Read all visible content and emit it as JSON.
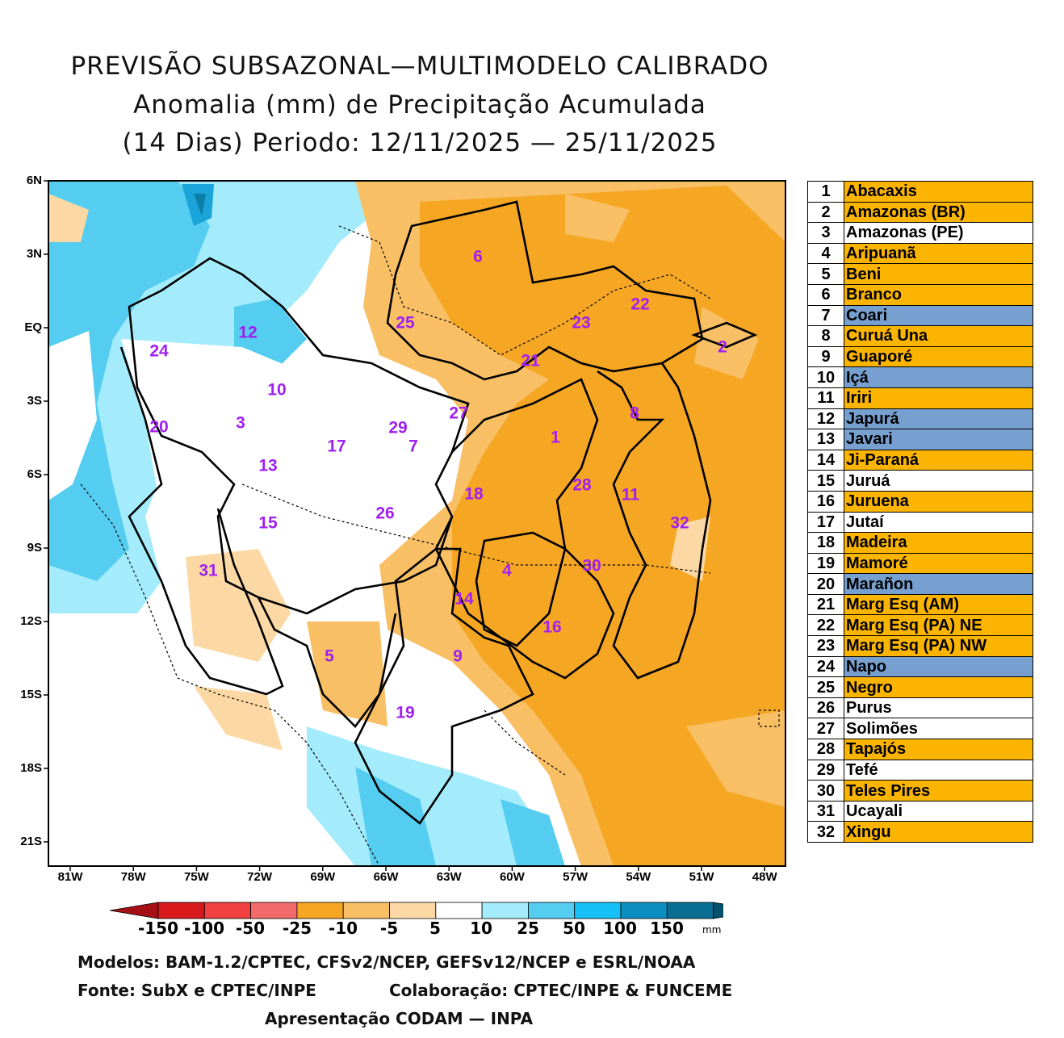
{
  "title": {
    "line1": "PREVISÃO SUBSAZONAL—MULTIMODELO CALIBRADO",
    "line2": "Anomalia (mm) de Precipitação Acumulada",
    "line3": "(14 Dias) Periodo: 12/11/2025 — 25/11/2025"
  },
  "axes": {
    "lat_ticks": [
      "6N",
      "3N",
      "EQ",
      "3S",
      "6S",
      "9S",
      "12S",
      "15S",
      "18S",
      "21S"
    ],
    "lon_ticks": [
      "81W",
      "78W",
      "75W",
      "72W",
      "69W",
      "66W",
      "63W",
      "60W",
      "57W",
      "54W",
      "51W",
      "48W"
    ]
  },
  "colors": {
    "orange_dark": "#f5a623",
    "orange_mid": "#f9bf64",
    "orange_light": "#fcd9a4",
    "white": "#ffffff",
    "cyan_light": "#a4ecfb",
    "cyan_mid": "#54cdf0",
    "cyan_dark": "#1aa4d9",
    "teal": "#0a7fa8",
    "table_orange": "#fbb400",
    "table_blue": "#779fcf",
    "table_white": "#ffffff"
  },
  "basins": [
    {
      "num": "1",
      "name": "Abacaxis",
      "cat": "orange"
    },
    {
      "num": "2",
      "name": "Amazonas (BR)",
      "cat": "orange"
    },
    {
      "num": "3",
      "name": "Amazonas (PE)",
      "cat": "white"
    },
    {
      "num": "4",
      "name": "Aripuanã",
      "cat": "orange"
    },
    {
      "num": "5",
      "name": "Beni",
      "cat": "orange"
    },
    {
      "num": "6",
      "name": "Branco",
      "cat": "orange"
    },
    {
      "num": "7",
      "name": "Coari",
      "cat": "blue"
    },
    {
      "num": "8",
      "name": "Curuá Una",
      "cat": "orange"
    },
    {
      "num": "9",
      "name": "Guaporé",
      "cat": "orange"
    },
    {
      "num": "10",
      "name": "Içá",
      "cat": "blue"
    },
    {
      "num": "11",
      "name": "Iriri",
      "cat": "orange"
    },
    {
      "num": "12",
      "name": "Japurá",
      "cat": "blue"
    },
    {
      "num": "13",
      "name": "Javari",
      "cat": "blue"
    },
    {
      "num": "14",
      "name": "Ji-Paraná",
      "cat": "orange"
    },
    {
      "num": "15",
      "name": "Juruá",
      "cat": "white"
    },
    {
      "num": "16",
      "name": "Juruena",
      "cat": "orange"
    },
    {
      "num": "17",
      "name": "Jutaí",
      "cat": "white"
    },
    {
      "num": "18",
      "name": "Madeira",
      "cat": "orange"
    },
    {
      "num": "19",
      "name": "Mamoré",
      "cat": "orange"
    },
    {
      "num": "20",
      "name": "Marañon",
      "cat": "blue"
    },
    {
      "num": "21",
      "name": "Marg Esq (AM)",
      "cat": "orange"
    },
    {
      "num": "22",
      "name": "Marg Esq (PA) NE",
      "cat": "orange"
    },
    {
      "num": "23",
      "name": "Marg Esq (PA) NW",
      "cat": "orange"
    },
    {
      "num": "24",
      "name": "Napo",
      "cat": "blue"
    },
    {
      "num": "25",
      "name": "Negro",
      "cat": "orange"
    },
    {
      "num": "26",
      "name": "Purus",
      "cat": "white"
    },
    {
      "num": "27",
      "name": "Solimões",
      "cat": "white"
    },
    {
      "num": "28",
      "name": "Tapajós",
      "cat": "orange"
    },
    {
      "num": "29",
      "name": "Tefé",
      "cat": "white"
    },
    {
      "num": "30",
      "name": "Teles Pires",
      "cat": "orange"
    },
    {
      "num": "31",
      "name": "Ucayali",
      "cat": "white"
    },
    {
      "num": "32",
      "name": "Xingu",
      "cat": "orange"
    }
  ],
  "colorbar": {
    "labels": [
      "-150",
      "-100",
      "-50",
      "-25",
      "-10",
      "-5",
      "5",
      "10",
      "25",
      "50",
      "100",
      "150"
    ],
    "unit": "mm",
    "colors": [
      "#d7191c",
      "#f04040",
      "#f26a6a",
      "#f5a623",
      "#f9bf64",
      "#fcd9a4",
      "#ffffff",
      "#a4ecfb",
      "#54cdf0",
      "#14c0f5",
      "#0a8fc0",
      "#086f92"
    ],
    "end_low": "#a50f15",
    "end_high": "#05506a"
  },
  "footer": {
    "models": "Modelos: BAM-1.2/CPTEC, CFSv2/NCEP, GEFSv12/NCEP e ESRL/NOAA",
    "source": "Fonte: SubX e CPTEC/INPE",
    "collab": "Colaboração: CPTEC/INPE & FUNCEME",
    "presentation": "Apresentação CODAM — INPA"
  }
}
